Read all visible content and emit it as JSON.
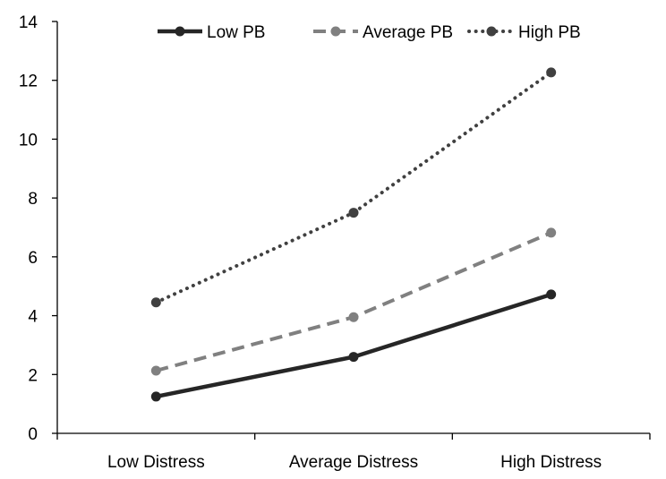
{
  "chart_data": {
    "type": "line",
    "title": "",
    "xlabel": "",
    "ylabel": "",
    "categories": [
      "Low Distress",
      "Average Distress",
      "High Distress"
    ],
    "ylim": [
      0,
      14
    ],
    "yticks": [
      0,
      2,
      4,
      6,
      8,
      10,
      12,
      14
    ],
    "grid": false,
    "legend_position": "top",
    "series": [
      {
        "name": "Low PB",
        "values": [
          1.25,
          2.6,
          4.72
        ],
        "color": "#262626",
        "style": "solid"
      },
      {
        "name": "Average PB",
        "values": [
          2.13,
          3.95,
          6.82
        ],
        "color": "#808080",
        "style": "dashed"
      },
      {
        "name": "High PB",
        "values": [
          4.45,
          7.5,
          12.27
        ],
        "color": "#404040",
        "style": "dotted"
      }
    ]
  }
}
